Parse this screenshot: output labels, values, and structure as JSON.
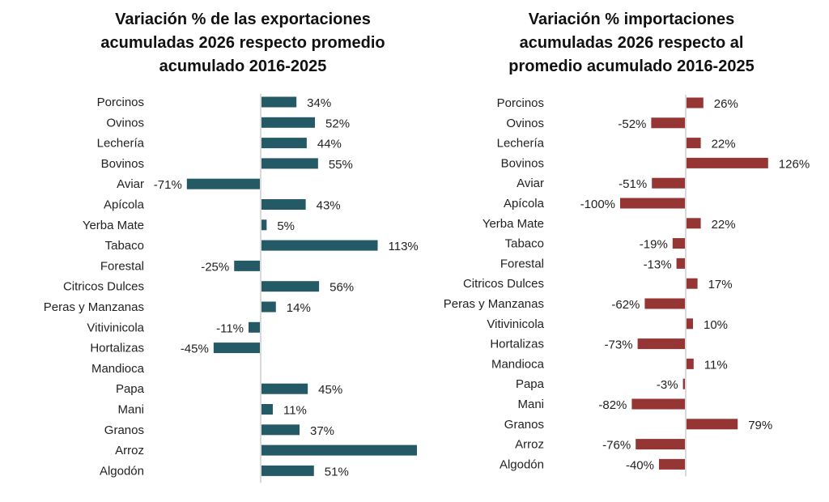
{
  "chart_data": [
    {
      "type": "bar",
      "orientation": "horizontal",
      "title": "Variación % de las exportaciones acumuladas 2026 respecto promedio acumulado 2016-2025",
      "title_lines": [
        "Variación % de las exportaciones",
        "acumuladas 2026 respecto promedio",
        "acumulado 2016-2025"
      ],
      "categories": [
        "Porcinos",
        "Ovinos",
        "Lechería",
        "Bovinos",
        "Aviar",
        "Apícola",
        "Yerba Mate",
        "Tabaco",
        "Forestal",
        "Citricos Dulces",
        "Peras y Manzanas",
        "Vitivinicola",
        "Hortalizas",
        "Mandioca",
        "Papa",
        "Mani",
        "Granos",
        "Arroz",
        "Algodón"
      ],
      "values": [
        34,
        52,
        44,
        55,
        -71,
        43,
        5,
        113,
        -25,
        56,
        14,
        -11,
        -45,
        null,
        45,
        11,
        37,
        152,
        51
      ],
      "labels": [
        "34%",
        "52%",
        "44%",
        "55%",
        "-71%",
        "43%",
        "5%",
        "113%",
        "-25%",
        "56%",
        "14%",
        "-11%",
        "-45%",
        "",
        "45%",
        "11%",
        "37%",
        "",
        "51%"
      ],
      "color": "#245a66",
      "unit": "%",
      "grid": false,
      "legend": "none"
    },
    {
      "type": "bar",
      "orientation": "horizontal",
      "title": "Variación % importaciones acumuladas 2026 respecto al promedio acumulado 2016-2025",
      "title_lines": [
        "Variación % importaciones",
        "acumuladas 2026 respecto al",
        "promedio acumulado 2016-2025"
      ],
      "categories": [
        "Porcinos",
        "Ovinos",
        "Lechería",
        "Bovinos",
        "Aviar",
        "Apícola",
        "Yerba Mate",
        "Tabaco",
        "Forestal",
        "Citricos Dulces",
        "Peras y Manzanas",
        "Vitivinicola",
        "Hortalizas",
        "Mandioca",
        "Papa",
        "Mani",
        "Granos",
        "Arroz",
        "Algodón"
      ],
      "values": [
        26,
        -52,
        22,
        126,
        -51,
        -100,
        22,
        -19,
        -13,
        17,
        -62,
        10,
        -73,
        11,
        -3,
        -82,
        79,
        -76,
        -40
      ],
      "labels": [
        "26%",
        "-52%",
        "22%",
        "126%",
        "-51%",
        "-100%",
        "22%",
        "-19%",
        "-13%",
        "17%",
        "-62%",
        "10%",
        "-73%",
        "11%",
        "-3%",
        "-82%",
        "79%",
        "-76%",
        "-40%"
      ],
      "color": "#963634",
      "unit": "%",
      "grid": false,
      "legend": "none"
    }
  ]
}
